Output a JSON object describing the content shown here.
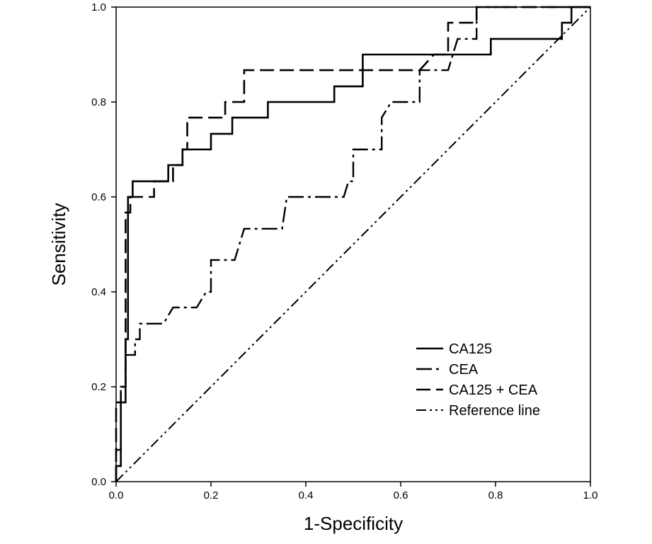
{
  "chart_data": {
    "type": "line",
    "title": "",
    "xlabel": "1-Specificity",
    "ylabel": "Sensitivity",
    "xlim": [
      0,
      1
    ],
    "ylim": [
      0,
      1
    ],
    "x_ticks": [
      "0.0",
      "0.2",
      "0.4",
      "0.6",
      "0.8",
      "1.0"
    ],
    "y_ticks": [
      "0.0",
      "0.2",
      "0.4",
      "0.6",
      "0.8",
      "1.0"
    ],
    "grid": false,
    "legend_position": "bottom-right",
    "series": [
      {
        "name": "CA125",
        "line_style": "solid",
        "color": "#000000",
        "points": [
          [
            0,
            0
          ],
          [
            0,
            0.033
          ],
          [
            0.01,
            0.033
          ],
          [
            0.01,
            0.167
          ],
          [
            0.02,
            0.167
          ],
          [
            0.02,
            0.3
          ],
          [
            0.025,
            0.3
          ],
          [
            0.025,
            0.6
          ],
          [
            0.035,
            0.6
          ],
          [
            0.035,
            0.633
          ],
          [
            0.055,
            0.633
          ],
          [
            0.11,
            0.633
          ],
          [
            0.11,
            0.667
          ],
          [
            0.14,
            0.667
          ],
          [
            0.14,
            0.7
          ],
          [
            0.2,
            0.7
          ],
          [
            0.2,
            0.733
          ],
          [
            0.245,
            0.733
          ],
          [
            0.245,
            0.767
          ],
          [
            0.32,
            0.767
          ],
          [
            0.32,
            0.8
          ],
          [
            0.46,
            0.8
          ],
          [
            0.46,
            0.833
          ],
          [
            0.52,
            0.833
          ],
          [
            0.52,
            0.9
          ],
          [
            0.79,
            0.9
          ],
          [
            0.79,
            0.933
          ],
          [
            0.94,
            0.933
          ],
          [
            0.94,
            0.967
          ],
          [
            0.96,
            0.967
          ],
          [
            0.96,
            1
          ],
          [
            1,
            1
          ]
        ]
      },
      {
        "name": "CEA",
        "line_style": "dash-dot",
        "color": "#000000",
        "points": [
          [
            0,
            0
          ],
          [
            0,
            0.067
          ],
          [
            0.01,
            0.067
          ],
          [
            0.01,
            0.2
          ],
          [
            0.02,
            0.2
          ],
          [
            0.02,
            0.267
          ],
          [
            0.04,
            0.267
          ],
          [
            0.04,
            0.3
          ],
          [
            0.05,
            0.3
          ],
          [
            0.05,
            0.333
          ],
          [
            0.1,
            0.333
          ],
          [
            0.12,
            0.367
          ],
          [
            0.17,
            0.367
          ],
          [
            0.19,
            0.4
          ],
          [
            0.2,
            0.4
          ],
          [
            0.2,
            0.467
          ],
          [
            0.25,
            0.467
          ],
          [
            0.27,
            0.533
          ],
          [
            0.35,
            0.533
          ],
          [
            0.36,
            0.6
          ],
          [
            0.48,
            0.6
          ],
          [
            0.49,
            0.633
          ],
          [
            0.5,
            0.633
          ],
          [
            0.5,
            0.7
          ],
          [
            0.56,
            0.7
          ],
          [
            0.56,
            0.767
          ],
          [
            0.58,
            0.8
          ],
          [
            0.64,
            0.8
          ],
          [
            0.64,
            0.867
          ],
          [
            0.7,
            0.867
          ],
          [
            0.72,
            0.933
          ],
          [
            0.76,
            0.933
          ],
          [
            0.76,
            1
          ],
          [
            1,
            1
          ]
        ]
      },
      {
        "name": "CA125 + CEA",
        "line_style": "dashed",
        "color": "#000000",
        "points": [
          [
            0,
            0
          ],
          [
            0,
            0.167
          ],
          [
            0.01,
            0.167
          ],
          [
            0.01,
            0.2
          ],
          [
            0.02,
            0.2
          ],
          [
            0.02,
            0.567
          ],
          [
            0.03,
            0.567
          ],
          [
            0.03,
            0.6
          ],
          [
            0.08,
            0.6
          ],
          [
            0.08,
            0.633
          ],
          [
            0.12,
            0.633
          ],
          [
            0.12,
            0.667
          ],
          [
            0.14,
            0.667
          ],
          [
            0.14,
            0.7
          ],
          [
            0.15,
            0.7
          ],
          [
            0.15,
            0.767
          ],
          [
            0.23,
            0.767
          ],
          [
            0.23,
            0.8
          ],
          [
            0.27,
            0.8
          ],
          [
            0.27,
            0.867
          ],
          [
            0.64,
            0.867
          ],
          [
            0.67,
            0.9
          ],
          [
            0.7,
            0.9
          ],
          [
            0.7,
            0.967
          ],
          [
            0.76,
            0.967
          ],
          [
            0.76,
            1
          ],
          [
            1,
            1
          ]
        ]
      },
      {
        "name": "Reference line",
        "line_style": "dash-dot-dot",
        "color": "#000000",
        "points": [
          [
            0,
            0
          ],
          [
            1,
            1
          ]
        ]
      }
    ]
  }
}
